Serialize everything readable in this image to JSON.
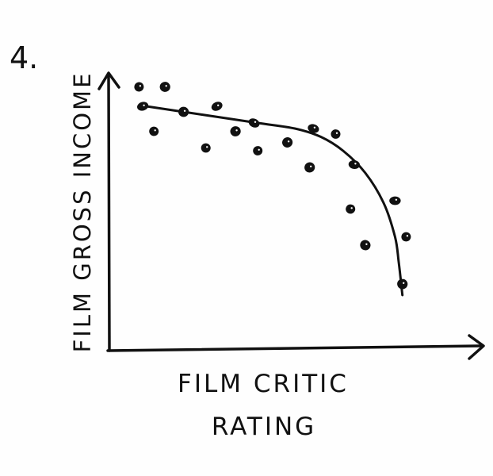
{
  "figure_number": "4.",
  "chart_data": {
    "type": "scatter",
    "title": "",
    "xlabel": "FILM CRITIC RATING",
    "xlabel_lines": [
      "FILM CRITIC",
      "RATING"
    ],
    "ylabel": "FILM GROSS INCOME",
    "axis_ticks": "none",
    "grid": false,
    "legend": "none",
    "style": "hand-drawn ink sketch",
    "xlim": [
      0,
      100
    ],
    "ylim": [
      0,
      100
    ],
    "points": [
      {
        "x": 8,
        "y": 95
      },
      {
        "x": 15,
        "y": 95
      },
      {
        "x": 9,
        "y": 88
      },
      {
        "x": 12,
        "y": 79
      },
      {
        "x": 20,
        "y": 86
      },
      {
        "x": 29,
        "y": 88
      },
      {
        "x": 26,
        "y": 73
      },
      {
        "x": 34,
        "y": 79
      },
      {
        "x": 39,
        "y": 82
      },
      {
        "x": 40,
        "y": 72
      },
      {
        "x": 48,
        "y": 75
      },
      {
        "x": 55,
        "y": 80
      },
      {
        "x": 61,
        "y": 78
      },
      {
        "x": 54,
        "y": 66
      },
      {
        "x": 66,
        "y": 67
      },
      {
        "x": 65,
        "y": 51
      },
      {
        "x": 69,
        "y": 38
      },
      {
        "x": 77,
        "y": 54
      },
      {
        "x": 80,
        "y": 41
      },
      {
        "x": 79,
        "y": 24
      }
    ],
    "trend_line": [
      {
        "x": 10,
        "y": 88
      },
      {
        "x": 25,
        "y": 85
      },
      {
        "x": 40,
        "y": 82
      },
      {
        "x": 50,
        "y": 80
      },
      {
        "x": 57,
        "y": 77
      },
      {
        "x": 63,
        "y": 72
      },
      {
        "x": 69,
        "y": 64
      },
      {
        "x": 74,
        "y": 53
      },
      {
        "x": 77,
        "y": 41
      },
      {
        "x": 78,
        "y": 32
      },
      {
        "x": 79,
        "y": 20
      }
    ],
    "colors": {
      "ink": "#111111",
      "paper": "#fefefe"
    }
  }
}
